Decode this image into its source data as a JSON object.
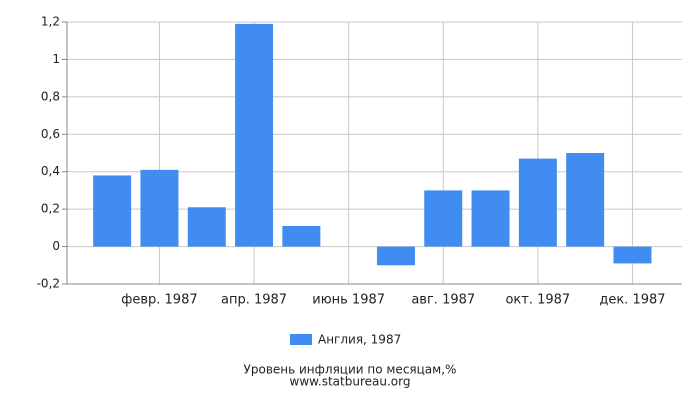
{
  "chart_data": {
    "type": "bar",
    "title": "Уровень инфляции по месяцам,%",
    "source": "www.statbureau.org",
    "categories": [
      null,
      "февр. 1987",
      null,
      "апр. 1987",
      null,
      "июнь 1987",
      null,
      "авг. 1987",
      null,
      "окт. 1987",
      null,
      "дек. 1987"
    ],
    "series": [
      {
        "name": "Англия, 1987",
        "color": "#418cf0",
        "values": [
          0.38,
          0.41,
          0.21,
          1.19,
          0.11,
          0,
          -0.1,
          0.3,
          0.3,
          0.47,
          0.5,
          -0.09
        ]
      }
    ],
    "ylim": [
      -0.2,
      1.2
    ],
    "yticks": [
      {
        "value": -0.2,
        "label": "-0,2"
      },
      0,
      {
        "value": 0.2,
        "label": "0,2"
      },
      {
        "value": 0.4,
        "label": "0,4"
      },
      {
        "value": 0.6,
        "label": "0,6"
      },
      {
        "value": 0.8,
        "label": "0,8"
      },
      1,
      {
        "value": 1.2,
        "label": "1,2"
      }
    ],
    "grid": true
  }
}
